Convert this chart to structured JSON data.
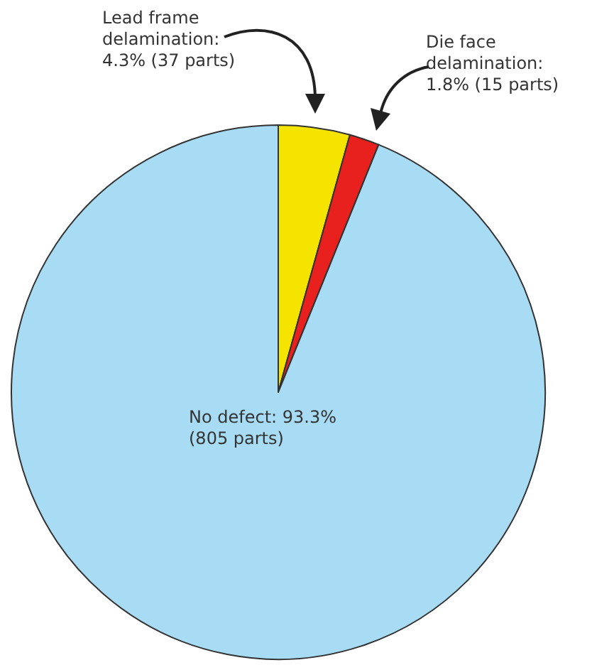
{
  "chart_data": {
    "type": "pie",
    "categories": [
      "Lead frame delamination: 4.3% (37 parts)",
      "Die face delamination: 1.8% (15 parts)",
      "No defect: 93.3% (805 parts)"
    ],
    "values": [
      4.3,
      1.8,
      93.3
    ],
    "colors": [
      "#f5e400",
      "#e8201e",
      "#a8dcf5"
    ]
  }
}
